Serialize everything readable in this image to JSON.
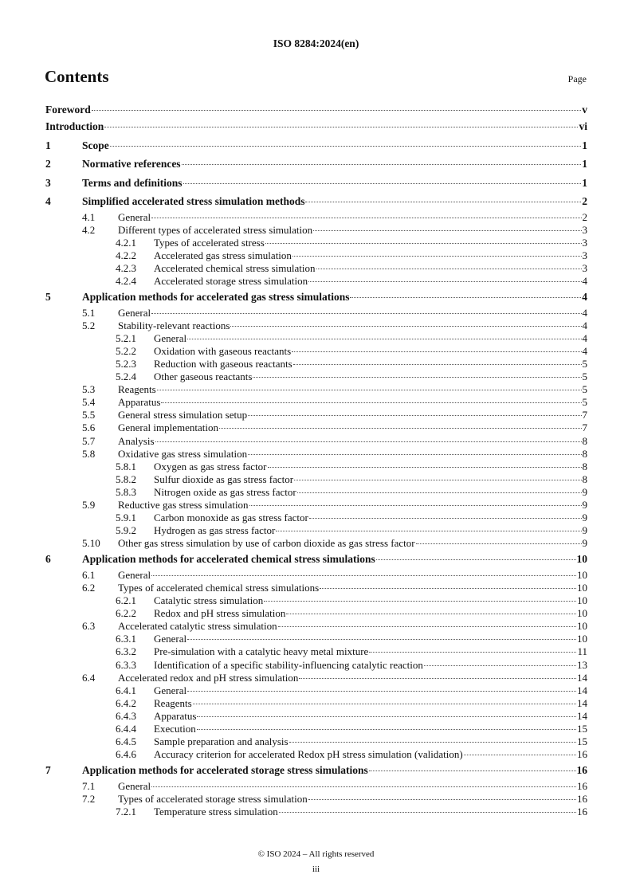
{
  "header": "ISO 8284:2024(en)",
  "title": "Contents",
  "page_label": "Page",
  "entries": [
    {
      "num": "",
      "title": "Foreword",
      "page": "v",
      "level": 0
    },
    {
      "num": "",
      "title": "Introduction",
      "page": "vi",
      "level": 0
    },
    {
      "num": "1",
      "title": "Scope",
      "page": "1",
      "level": 0
    },
    {
      "num": "2",
      "title": "Normative references",
      "page": "1",
      "level": 0
    },
    {
      "num": "3",
      "title": "Terms and definitions",
      "page": "1",
      "level": 0
    },
    {
      "num": "4",
      "title": "Simplified accelerated stress simulation methods",
      "page": "2",
      "level": 0
    },
    {
      "num": "4.1",
      "title": "General",
      "page": "2",
      "level": 1
    },
    {
      "num": "4.2",
      "title": "Different types of accelerated stress simulation",
      "page": "3",
      "level": 1
    },
    {
      "num": "4.2.1",
      "title": "Types of accelerated stress",
      "page": "3",
      "level": 2
    },
    {
      "num": "4.2.2",
      "title": "Accelerated gas stress simulation",
      "page": "3",
      "level": 2
    },
    {
      "num": "4.2.3",
      "title": "Accelerated chemical stress simulation",
      "page": "3",
      "level": 2
    },
    {
      "num": "4.2.4",
      "title": "Accelerated storage stress simulation",
      "page": "4",
      "level": 2
    },
    {
      "num": "5",
      "title": "Application methods for accelerated gas stress simulations",
      "page": "4",
      "level": 0
    },
    {
      "num": "5.1",
      "title": "General",
      "page": "4",
      "level": 1
    },
    {
      "num": "5.2",
      "title": "Stability-relevant reactions",
      "page": "4",
      "level": 1
    },
    {
      "num": "5.2.1",
      "title": "General",
      "page": "4",
      "level": 2
    },
    {
      "num": "5.2.2",
      "title": "Oxidation with gaseous reactants",
      "page": "4",
      "level": 2
    },
    {
      "num": "5.2.3",
      "title": "Reduction with gaseous reactants",
      "page": "5",
      "level": 2
    },
    {
      "num": "5.2.4",
      "title": "Other gaseous reactants",
      "page": "5",
      "level": 2
    },
    {
      "num": "5.3",
      "title": "Reagents",
      "page": "5",
      "level": 1
    },
    {
      "num": "5.4",
      "title": "Apparatus",
      "page": "5",
      "level": 1
    },
    {
      "num": "5.5",
      "title": "General stress simulation setup",
      "page": "7",
      "level": 1
    },
    {
      "num": "5.6",
      "title": "General implementation",
      "page": "7",
      "level": 1
    },
    {
      "num": "5.7",
      "title": "Analysis",
      "page": "8",
      "level": 1
    },
    {
      "num": "5.8",
      "title": "Oxidative gas stress simulation",
      "page": "8",
      "level": 1
    },
    {
      "num": "5.8.1",
      "title": "Oxygen as gas stress factor",
      "page": "8",
      "level": 2
    },
    {
      "num": "5.8.2",
      "title": "Sulfur dioxide as gas stress factor",
      "page": "8",
      "level": 2
    },
    {
      "num": "5.8.3",
      "title": "Nitrogen oxide as gas stress factor",
      "page": "9",
      "level": 2
    },
    {
      "num": "5.9",
      "title": "Reductive gas stress simulation",
      "page": "9",
      "level": 1
    },
    {
      "num": "5.9.1",
      "title": "Carbon monoxide as gas stress factor",
      "page": "9",
      "level": 2
    },
    {
      "num": "5.9.2",
      "title": "Hydrogen as gas stress factor",
      "page": "9",
      "level": 2
    },
    {
      "num": "5.10",
      "title": "Other gas stress simulation by use of carbon dioxide as gas stress factor",
      "page": "9",
      "level": 1
    },
    {
      "num": "6",
      "title": "Application methods for accelerated chemical stress simulations",
      "page": "10",
      "level": 0
    },
    {
      "num": "6.1",
      "title": "General",
      "page": "10",
      "level": 1
    },
    {
      "num": "6.2",
      "title": "Types of accelerated chemical stress simulations",
      "page": "10",
      "level": 1
    },
    {
      "num": "6.2.1",
      "title": "Catalytic stress simulation",
      "page": "10",
      "level": 2
    },
    {
      "num": "6.2.2",
      "title": "Redox and pH stress simulation",
      "page": "10",
      "level": 2
    },
    {
      "num": "6.3",
      "title": "Accelerated catalytic stress simulation",
      "page": "10",
      "level": 1
    },
    {
      "num": "6.3.1",
      "title": "General",
      "page": "10",
      "level": 2
    },
    {
      "num": "6.3.2",
      "title": "Pre-simulation with a catalytic heavy metal mixture",
      "page": "11",
      "level": 2
    },
    {
      "num": "6.3.3",
      "title": "Identification of a specific stability-influencing catalytic reaction",
      "page": "13",
      "level": 2
    },
    {
      "num": "6.4",
      "title": "Accelerated redox and pH stress simulation",
      "page": "14",
      "level": 1
    },
    {
      "num": "6.4.1",
      "title": "General",
      "page": "14",
      "level": 2
    },
    {
      "num": "6.4.2",
      "title": "Reagents",
      "page": "14",
      "level": 2
    },
    {
      "num": "6.4.3",
      "title": "Apparatus",
      "page": "14",
      "level": 2
    },
    {
      "num": "6.4.4",
      "title": "Execution",
      "page": "15",
      "level": 2
    },
    {
      "num": "6.4.5",
      "title": "Sample preparation and analysis",
      "page": "15",
      "level": 2
    },
    {
      "num": "6.4.6",
      "title": "Accuracy criterion for accelerated Redox pH stress simulation (validation)",
      "page": "16",
      "level": 2
    },
    {
      "num": "7",
      "title": "Application methods for accelerated storage stress simulations",
      "page": "16",
      "level": 0
    },
    {
      "num": "7.1",
      "title": "General",
      "page": "16",
      "level": 1
    },
    {
      "num": "7.2",
      "title": "Types of accelerated storage stress simulation",
      "page": "16",
      "level": 1
    },
    {
      "num": "7.2.1",
      "title": "Temperature stress simulation",
      "page": "16",
      "level": 2
    }
  ],
  "footer": {
    "copyright": "© ISO 2024 – All rights reserved",
    "page_number": "iii"
  }
}
